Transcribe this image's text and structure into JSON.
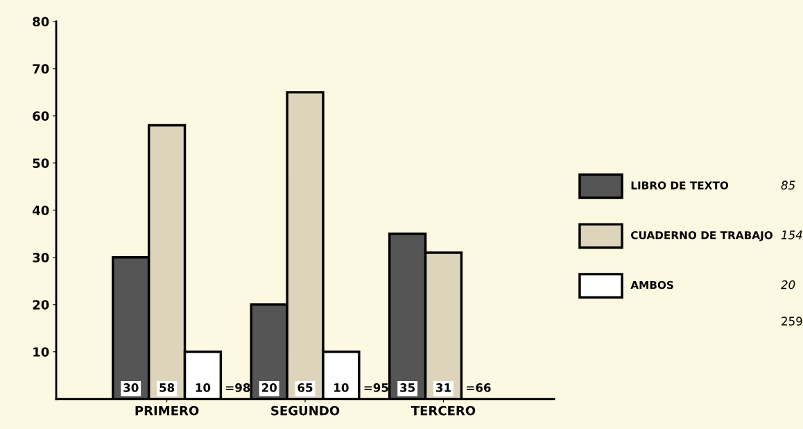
{
  "chart_data": {
    "type": "bar",
    "categories": [
      "PRIMERO",
      "SEGUNDO",
      "TERCERO"
    ],
    "series": [
      {
        "name": "LIBRO DE TEXTO",
        "color": "#555555",
        "values": [
          30,
          20,
          35
        ]
      },
      {
        "name": "CUADERNO DE TRABAJO",
        "color": "#ddd5bb",
        "values": [
          58,
          65,
          31
        ]
      },
      {
        "name": "AMBOS",
        "color": "#ffffff",
        "values": [
          10,
          10,
          null
        ]
      }
    ],
    "ylim": [
      0,
      80
    ],
    "yticks": [
      10,
      20,
      30,
      40,
      50,
      60,
      70,
      80
    ],
    "data_labels": true,
    "totals": [
      "=98",
      "=95",
      "=66"
    ],
    "legend": "right",
    "grid": false,
    "annotations": [
      "85",
      "154",
      "20",
      "259"
    ]
  }
}
